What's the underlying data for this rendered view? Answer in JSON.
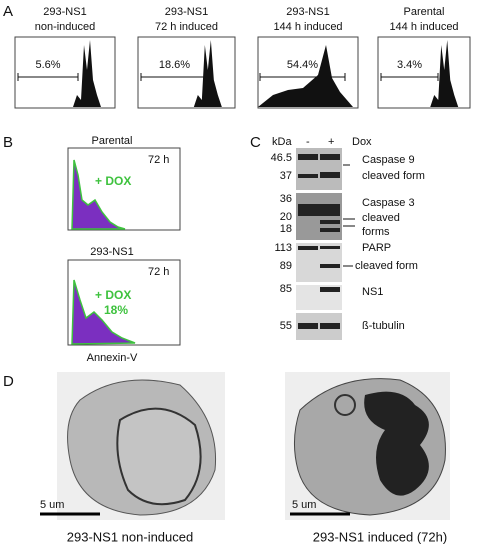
{
  "panel_a": {
    "label": "A",
    "histograms": [
      {
        "title": [
          "293-NS1",
          "non-induced"
        ],
        "percent": "5.6%"
      },
      {
        "title": [
          "293-NS1",
          "72 h induced"
        ],
        "percent": "18.6%"
      },
      {
        "title": [
          "293-NS1",
          "144 h induced"
        ],
        "percent": "54.4%"
      },
      {
        "title": [
          "Parental",
          "144 h induced"
        ],
        "percent": "3.4%"
      }
    ]
  },
  "panel_b": {
    "label": "B",
    "plots": [
      {
        "title": "Parental",
        "time": "72 h",
        "treatment": "+ DOX"
      },
      {
        "title": "293-NS1",
        "time": "72 h",
        "treatment": "+ DOX",
        "percent": "18%"
      }
    ],
    "x_label": "Annexin-V"
  },
  "panel_c": {
    "label": "C",
    "header": {
      "unit": "kDa",
      "minus": "-",
      "plus": "+",
      "condition": "Dox"
    },
    "markers": [
      "46.5",
      "37",
      "36",
      "20",
      "18",
      "113",
      "89",
      "85",
      "55"
    ],
    "bands": [
      "Caspase 9",
      "cleaved form",
      "Caspase 3",
      "cleaved",
      "forms",
      "PARP",
      "cleaved form",
      "NS1",
      "ß-tubulin"
    ]
  },
  "panel_d": {
    "label": "D",
    "images": [
      {
        "caption": "293-NS1 non-induced",
        "scale": "5 um"
      },
      {
        "caption": "293-NS1 induced (72h)",
        "scale": "5 um"
      }
    ]
  }
}
